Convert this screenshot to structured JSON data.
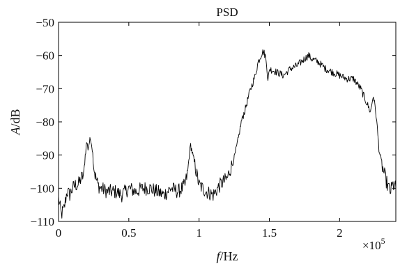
{
  "chart_data": {
    "type": "line",
    "title": "PSD",
    "xlabel_italic": "f",
    "xlabel_rest": "/Hz",
    "ylabel_italic": "A",
    "ylabel_rest": "/dB",
    "x_multiplier_label": "×10",
    "x_multiplier_exponent": "5",
    "xlim": [
      0,
      2.4
    ],
    "ylim": [
      -110,
      -50
    ],
    "x_ticks": [
      0,
      0.5,
      1,
      1.5,
      2
    ],
    "x_tick_labels": [
      "0",
      "0.5",
      "1",
      "1.5",
      "2"
    ],
    "y_ticks": [
      -110,
      -100,
      -90,
      -80,
      -70,
      -60,
      -50
    ],
    "y_tick_labels": [
      "−110",
      "−100",
      "−90",
      "−80",
      "−70",
      "−60",
      "−50"
    ],
    "grid": false,
    "series": [
      {
        "color": "#000000",
        "x": [
          0.0,
          0.02,
          0.04,
          0.06,
          0.08,
          0.1,
          0.12,
          0.14,
          0.16,
          0.18,
          0.19,
          0.2,
          0.21,
          0.22,
          0.23,
          0.24,
          0.25,
          0.26,
          0.28,
          0.3,
          0.35,
          0.4,
          0.45,
          0.5,
          0.55,
          0.6,
          0.65,
          0.7,
          0.75,
          0.8,
          0.85,
          0.88,
          0.9,
          0.92,
          0.93,
          0.94,
          0.95,
          0.97,
          1.0,
          1.05,
          1.1,
          1.15,
          1.2,
          1.25,
          1.28,
          1.3,
          1.33,
          1.36,
          1.4,
          1.42,
          1.44,
          1.45,
          1.46,
          1.47,
          1.48,
          1.49,
          1.5,
          1.55,
          1.6,
          1.65,
          1.7,
          1.75,
          1.78,
          1.8,
          1.85,
          1.9,
          1.95,
          2.0,
          2.05,
          2.1,
          2.15,
          2.18,
          2.2,
          2.22,
          2.24,
          2.26,
          2.28,
          2.3,
          2.32,
          2.34,
          2.36,
          2.38,
          2.4
        ],
        "values": [
          -103,
          -108,
          -106,
          -101,
          -102,
          -100,
          -99,
          -99,
          -97,
          -96,
          -90,
          -86,
          -88,
          -86,
          -85,
          -88,
          -93,
          -96,
          -99,
          -100,
          -101,
          -101,
          -102,
          -100,
          -101,
          -100,
          -100,
          -101,
          -102,
          -100,
          -101,
          -100,
          -99,
          -95,
          -90,
          -87,
          -89,
          -93,
          -99,
          -101,
          -102,
          -99,
          -97,
          -91,
          -85,
          -80,
          -76,
          -71,
          -66,
          -62,
          -60,
          -59,
          -59,
          -60,
          -62,
          -68,
          -64,
          -65,
          -66,
          -64,
          -63,
          -61,
          -60,
          -61,
          -62,
          -64,
          -65,
          -66,
          -67,
          -67,
          -70,
          -73,
          -75,
          -77,
          -72,
          -78,
          -88,
          -93,
          -96,
          -99,
          -101,
          -99,
          -100
        ]
      }
    ]
  }
}
